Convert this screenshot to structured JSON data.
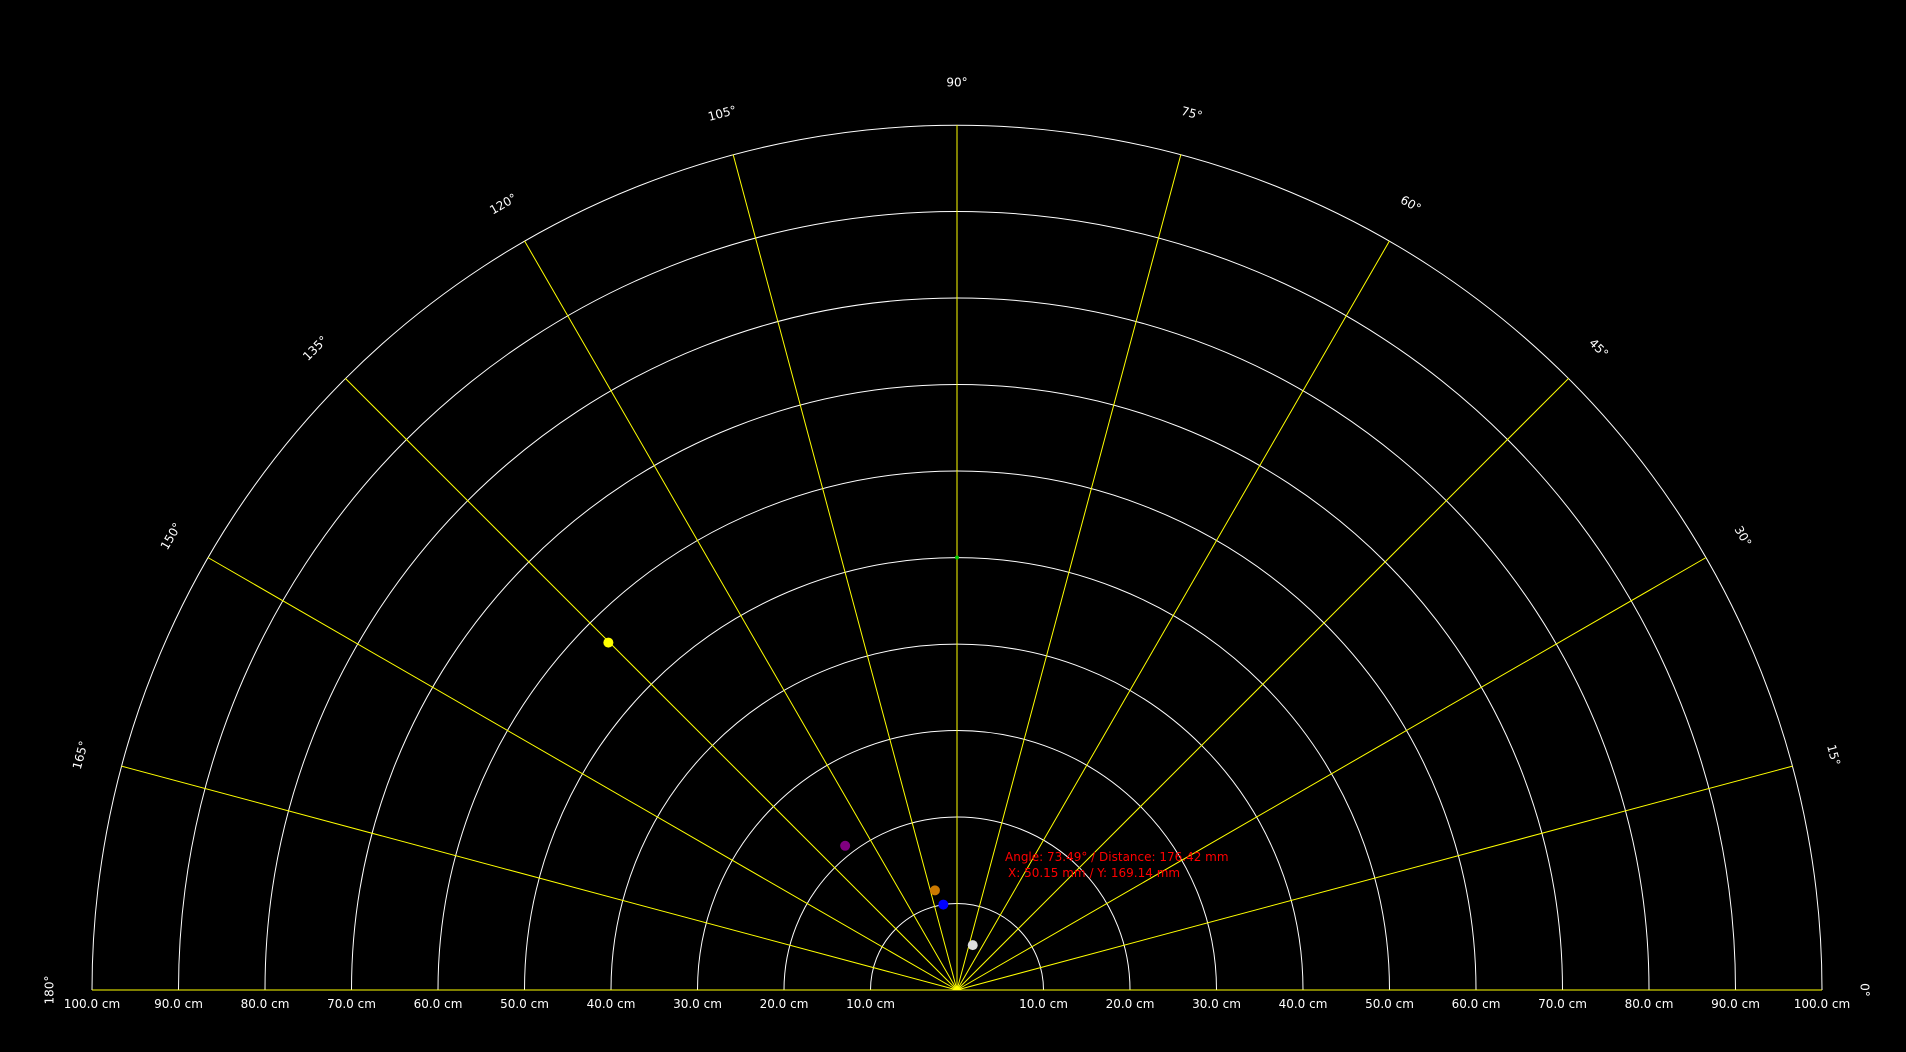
{
  "chart_data": {
    "type": "scatter",
    "coordinate_system": "polar-semicircle",
    "angle_ticks": [
      "0°",
      "15°",
      "30°",
      "45°",
      "60°",
      "75°",
      "90°",
      "105°",
      "120°",
      "135°",
      "150°",
      "165°",
      "180°"
    ],
    "radius_ticks_right": [
      "10.0 cm",
      "20.0 cm",
      "30.0 cm",
      "40.0 cm",
      "50.0 cm",
      "60.0 cm",
      "70.0 cm",
      "80.0 cm",
      "90.0 cm",
      "100.0 cm"
    ],
    "radius_ticks_left": [
      "10.0 cm",
      "20.0 cm",
      "30.0 cm",
      "40.0 cm",
      "50.0 cm",
      "60.0 cm",
      "70.0 cm",
      "80.0 cm",
      "90.0 cm",
      "100.0 cm"
    ],
    "radius_range_cm": [
      0,
      100
    ],
    "angle_range_deg": [
      0,
      180
    ],
    "grid": true,
    "points": [
      {
        "angle_deg": 135.1,
        "distance_cm": 56.9,
        "color": "#ffff00"
      },
      {
        "angle_deg": 90.0,
        "distance_cm": 50.0,
        "color": "#00cc00"
      },
      {
        "angle_deg": 127.8,
        "distance_cm": 21.1,
        "color": "#800080"
      },
      {
        "angle_deg": 102.5,
        "distance_cm": 11.8,
        "color": "#cc7a00"
      },
      {
        "angle_deg": 99.1,
        "distance_cm": 10.0,
        "color": "#0000ff"
      },
      {
        "angle_deg": 70.7,
        "distance_cm": 5.5,
        "color": "#dddddd"
      }
    ],
    "readout": {
      "line1": "Angle: 73.49° / Distance: 176.42 mm",
      "line2": "X: 50.15 mm / Y: 169.14 mm",
      "color": "#ff0000"
    },
    "colors": {
      "background": "#000000",
      "rings": "#ffffff",
      "spokes": "#ffff00",
      "labels": "#ffffff"
    }
  }
}
